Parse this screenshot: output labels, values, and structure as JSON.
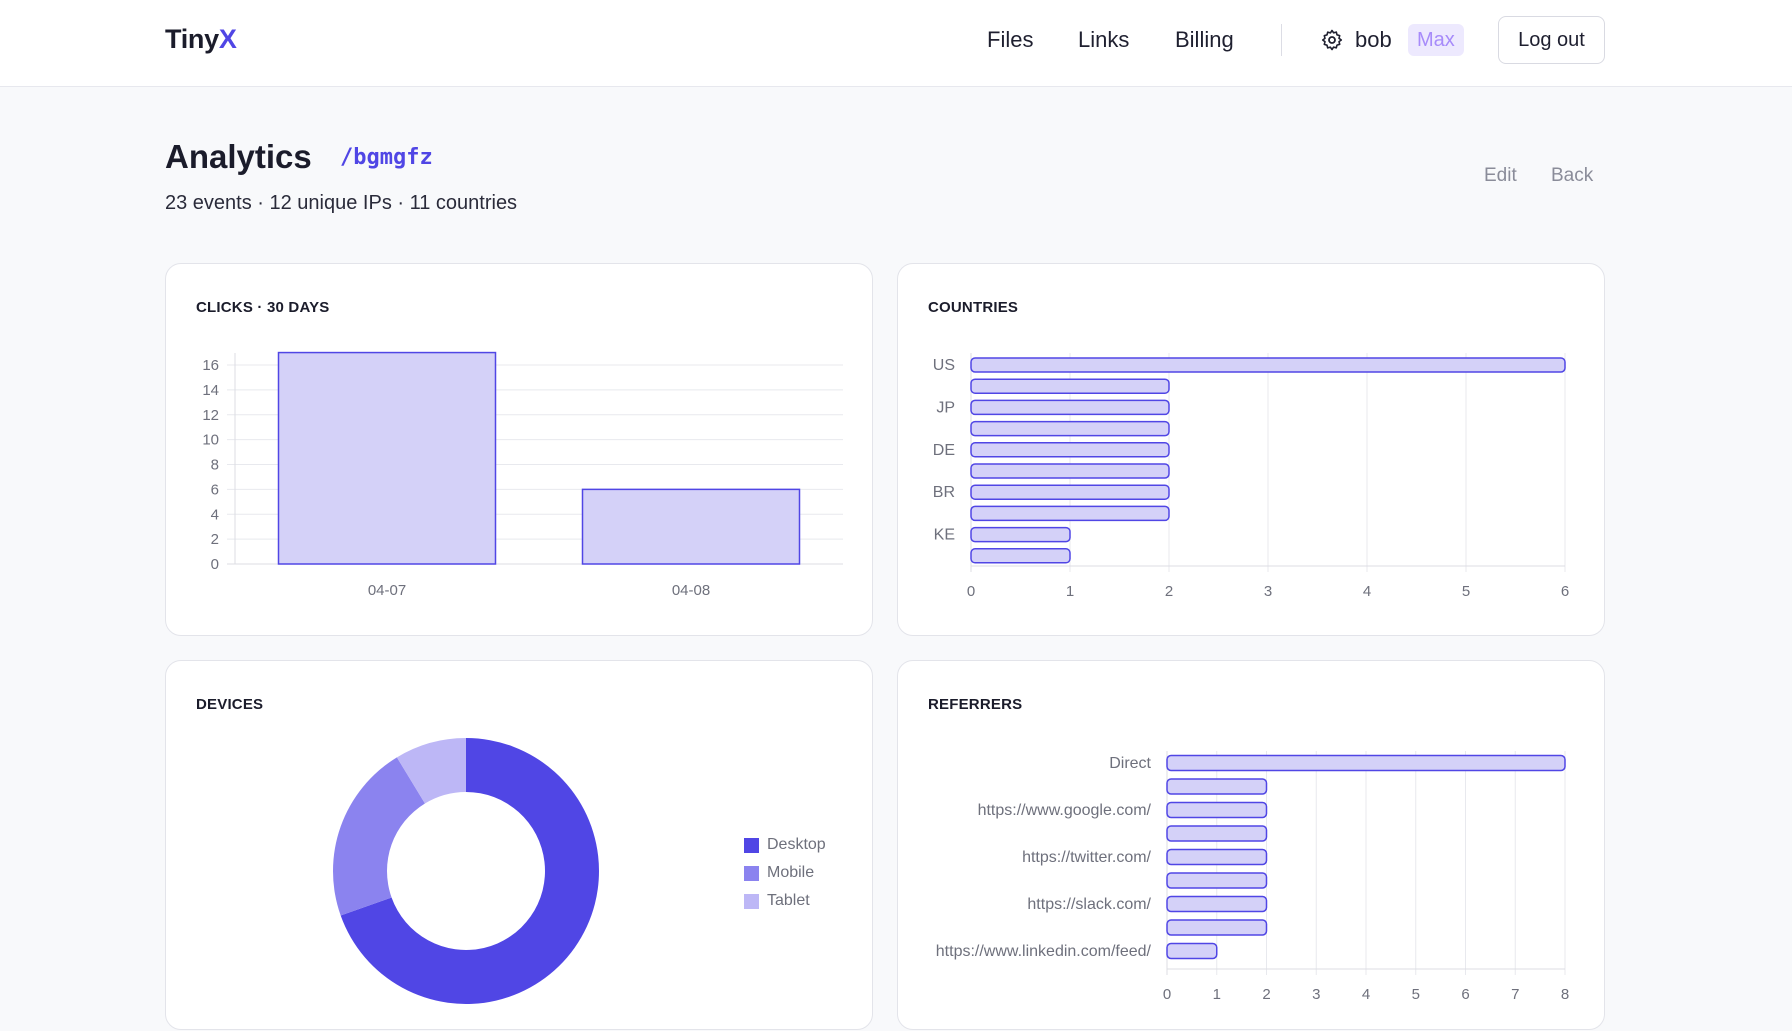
{
  "app": {
    "brand_main": "Tiny",
    "brand_accent": "X"
  },
  "nav": {
    "files": "Files",
    "links": "Links",
    "billing": "Billing"
  },
  "user": {
    "name": "bob",
    "plan": "Max",
    "logout": "Log out"
  },
  "page": {
    "title": "Analytics",
    "slug": "/bgmgfz",
    "summary": "23 events · 12 unique IPs · 11 countries",
    "edit": "Edit",
    "back": "Back"
  },
  "colors": {
    "accent": "#5046e5",
    "bar_fill": "#d4d1f8",
    "bar_stroke": "#5046e5",
    "mobile": "#8b83ef",
    "tablet": "#bdb7f6"
  },
  "cards": {
    "clicks": "CLICKS · 30 DAYS",
    "countries": "COUNTRIES",
    "devices": "DEVICES",
    "referrers": "REFERRERS"
  },
  "chart_data": [
    {
      "id": "clicks",
      "type": "bar",
      "title": "CLICKS · 30 DAYS",
      "categories": [
        "04-07",
        "04-08"
      ],
      "values": [
        17,
        6
      ],
      "ylim": [
        0,
        16
      ],
      "yticks": [
        0,
        2,
        4,
        6,
        8,
        10,
        12,
        14,
        16
      ],
      "grid": true
    },
    {
      "id": "countries",
      "type": "bar",
      "orientation": "horizontal",
      "title": "COUNTRIES",
      "categories": [
        "US",
        "",
        "JP",
        "",
        "DE",
        "",
        "BR",
        "",
        "KE",
        ""
      ],
      "values": [
        6,
        2,
        2,
        2,
        2,
        2,
        2,
        2,
        1,
        1
      ],
      "xlim": [
        0,
        6
      ],
      "xticks": [
        0,
        1,
        2,
        3,
        4,
        5,
        6
      ],
      "grid": true
    },
    {
      "id": "devices",
      "type": "pie",
      "donut": true,
      "title": "DEVICES",
      "labels": [
        "Desktop",
        "Mobile",
        "Tablet"
      ],
      "values": [
        16,
        5,
        2
      ],
      "legend": "right"
    },
    {
      "id": "referrers",
      "type": "bar",
      "orientation": "horizontal",
      "title": "REFERRERS",
      "categories": [
        "Direct",
        "",
        "https://www.google.com/",
        "",
        "https://twitter.com/",
        "",
        "https://slack.com/",
        "",
        "https://www.linkedin.com/feed/"
      ],
      "values": [
        8,
        2,
        2,
        2,
        2,
        2,
        2,
        2,
        1
      ],
      "xlim": [
        0,
        8
      ],
      "xticks": [
        0,
        1,
        2,
        3,
        4,
        5,
        6,
        7,
        8
      ],
      "grid": true
    }
  ]
}
